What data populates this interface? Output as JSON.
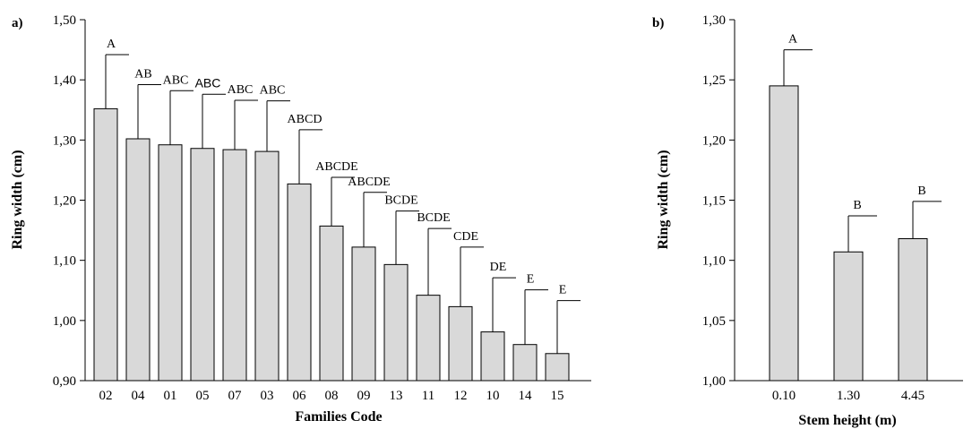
{
  "chart_data": [
    {
      "type": "bar",
      "panel_label": "a)",
      "xlabel": "Families Code",
      "ylabel": "Ring width (cm)",
      "ylim": [
        0.9,
        1.5
      ],
      "yticks": [
        "0,90",
        "1,00",
        "1,10",
        "1,20",
        "1,30",
        "1,40",
        "1,50"
      ],
      "categories": [
        "02",
        "04",
        "01",
        "05",
        "07",
        "03",
        "06",
        "08",
        "09",
        "13",
        "11",
        "12",
        "10",
        "14",
        "15"
      ],
      "values": [
        1.352,
        1.302,
        1.292,
        1.286,
        1.284,
        1.281,
        1.227,
        1.157,
        1.122,
        1.093,
        1.042,
        1.023,
        0.981,
        0.96,
        0.945
      ],
      "error_upper": [
        1.442,
        1.392,
        1.382,
        1.376,
        1.366,
        1.365,
        1.317,
        1.238,
        1.213,
        1.182,
        1.153,
        1.122,
        1.071,
        1.051,
        1.033
      ],
      "group_letters": [
        "A",
        "AB",
        "ABC",
        "ABC",
        "ABC",
        "ABC",
        "ABCD",
        "ABCDE",
        "ABCDE",
        "BCDE",
        "BCDE",
        "CDE",
        "DE",
        "E",
        "E"
      ],
      "bar_color": "#d9d9d9",
      "grid": false
    },
    {
      "type": "bar",
      "panel_label": "b)",
      "xlabel": "Stem height (m)",
      "ylabel": "Ring width (cm)",
      "ylim": [
        1.0,
        1.3
      ],
      "yticks": [
        "1,00",
        "1,05",
        "1,10",
        "1,15",
        "1,20",
        "1,25",
        "1,30"
      ],
      "categories": [
        "0.10",
        "1.30",
        "4.45"
      ],
      "values": [
        1.245,
        1.107,
        1.118
      ],
      "error_upper": [
        1.275,
        1.137,
        1.149
      ],
      "group_letters": [
        "A",
        "B",
        "B"
      ],
      "bar_color": "#d9d9d9",
      "grid": false
    }
  ]
}
